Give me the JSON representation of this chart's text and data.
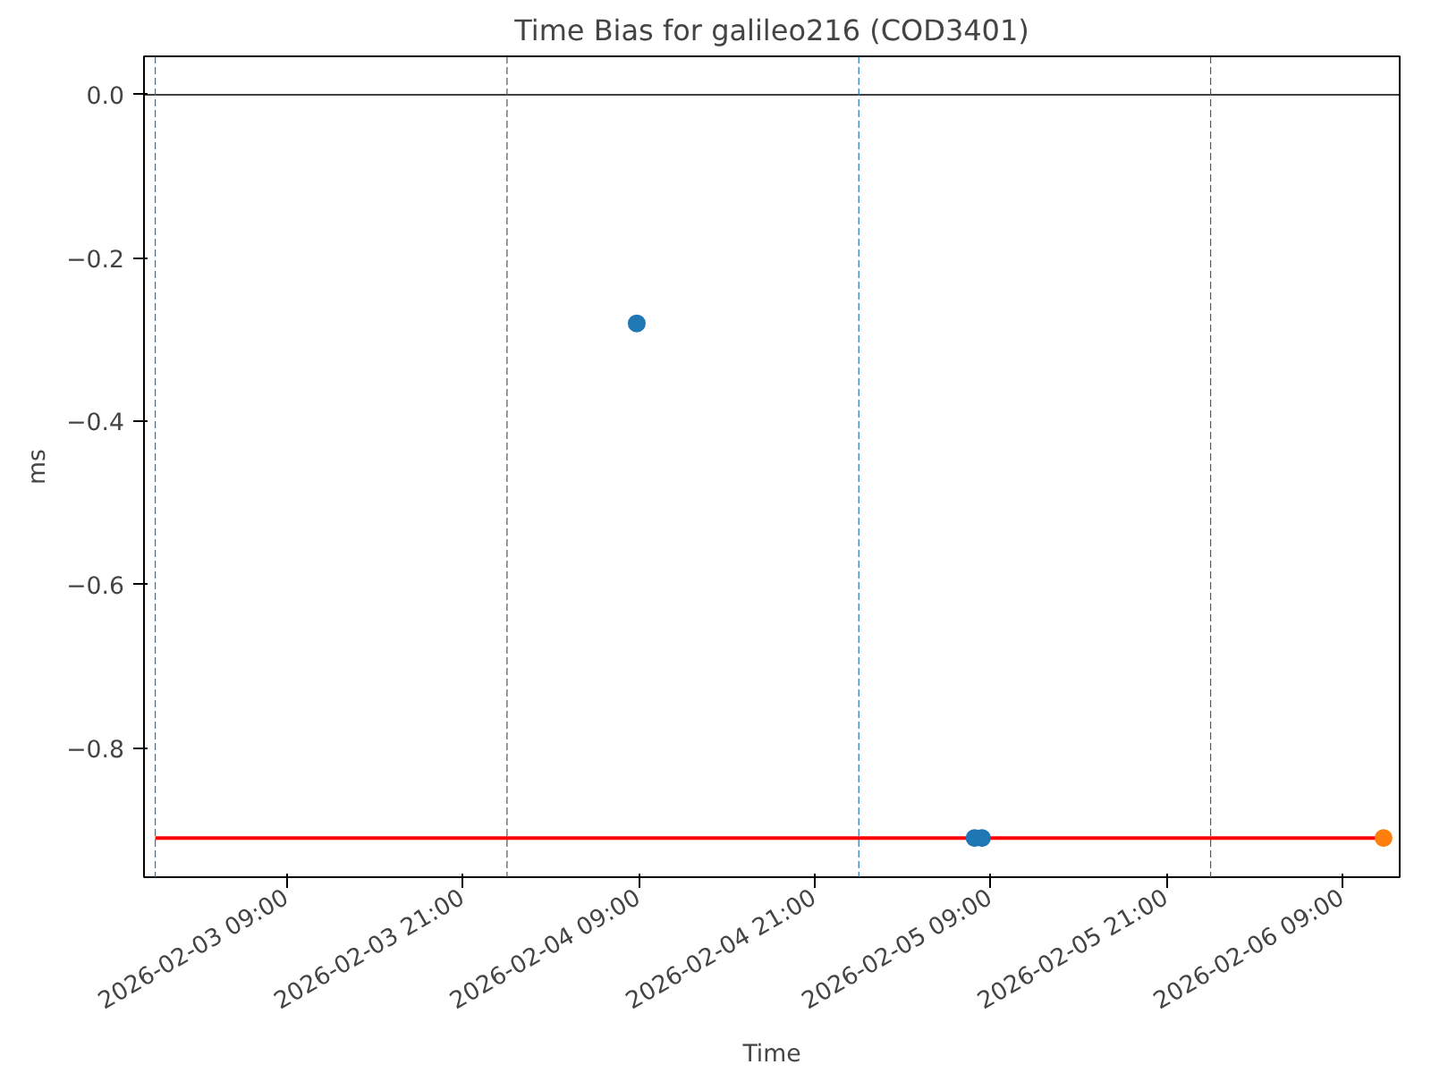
{
  "chart_data": {
    "type": "scatter",
    "title": "Time Bias for galileo216 (COD3401)",
    "xlabel": "Time",
    "ylabel": "ms",
    "xlim": [
      "2026-02-02T23:14",
      "2026-02-06T12:54"
    ],
    "ylim": [
      -0.958,
      0.047
    ],
    "xticks": [
      {
        "value": "2026-02-03T09:00",
        "label": "2026-02-03 09:00"
      },
      {
        "value": "2026-02-03T21:00",
        "label": "2026-02-03 21:00"
      },
      {
        "value": "2026-02-04T09:00",
        "label": "2026-02-04 09:00"
      },
      {
        "value": "2026-02-04T21:00",
        "label": "2026-02-04 21:00"
      },
      {
        "value": "2026-02-05T09:00",
        "label": "2026-02-05 09:00"
      },
      {
        "value": "2026-02-05T21:00",
        "label": "2026-02-05 21:00"
      },
      {
        "value": "2026-02-06T09:00",
        "label": "2026-02-06 09:00"
      }
    ],
    "yticks": [
      {
        "value": 0,
        "label": "0.0"
      },
      {
        "value": -0.2,
        "label": "−0.2"
      },
      {
        "value": -0.4,
        "label": "−0.4"
      },
      {
        "value": -0.6,
        "label": "−0.6"
      },
      {
        "value": -0.8,
        "label": "−0.8"
      }
    ],
    "grid": false,
    "marker": "circle",
    "series": [
      {
        "type": "line",
        "color": "#ff0000",
        "x": [
          "2026-02-03T00:00",
          "2026-02-06T11:48"
        ],
        "values": [
          -0.91,
          -0.91
        ],
        "marker": "none"
      },
      {
        "color": "#1f77b4",
        "x": [
          "2026-02-04T08:51",
          "2026-02-05T07:54",
          "2026-02-05T08:24"
        ],
        "values": [
          -0.28,
          -0.91,
          -0.91
        ]
      },
      {
        "color": "#ff7f0e",
        "x": [
          "2026-02-06T11:48"
        ],
        "values": [
          -0.91
        ]
      }
    ],
    "ref_lines": [
      {
        "axis": "y",
        "value": 0,
        "color": "#000000",
        "line_style": "solid"
      },
      {
        "axis": "x",
        "value": "2026-02-03T00:00",
        "color": "#1f77b4",
        "line_style": "dashed"
      },
      {
        "axis": "x",
        "value": "2026-02-04T00:00",
        "color": "#555555",
        "line_style": "dashed"
      },
      {
        "axis": "x",
        "value": "2026-02-05T00:00",
        "color": "#1f77b4",
        "line_style": "dashed"
      },
      {
        "axis": "x",
        "value": "2026-02-06T00:00",
        "color": "#555555",
        "line_style": "dashed"
      }
    ]
  }
}
